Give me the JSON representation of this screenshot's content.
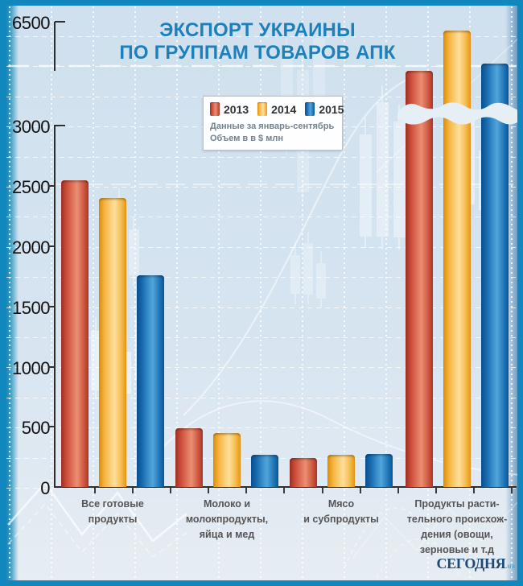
{
  "title": {
    "line1": "ЭКСПОРТ УКРАИНЫ",
    "line2": "ПО ГРУППАМ ТОВАРОВ АПК"
  },
  "legend": {
    "items": [
      {
        "label": "2013",
        "color": "#c0392b"
      },
      {
        "label": "2014",
        "color": "#f5b041"
      },
      {
        "label": "2015",
        "color": "#1f6fb2"
      }
    ],
    "note_line1": "Данные за январь-сентябрь",
    "note_line2": "Объем в в $ млн"
  },
  "chart_data": {
    "type": "bar",
    "title": "Экспорт Украины по группам товаров АПК",
    "subtitle": "Данные за январь-сентябрь, объем в $ млн",
    "unit": "$ млн",
    "categories": [
      "Все готовые продукты",
      "Молоко и молокпродукты, яйца и мед",
      "Мясо и субпродукты",
      "Продукты растительного происхождения (овощи, зерновые и т.д"
    ],
    "category_lines": [
      [
        "Все готовые",
        "продукты"
      ],
      [
        "Молоко и",
        "молокпродукты,",
        "яйца и мед"
      ],
      [
        "Мясо",
        "и субпродукты"
      ],
      [
        "Продукты расти-",
        "тельного происхож-",
        "дения (овощи,",
        "зерновые и т.д"
      ]
    ],
    "series": [
      {
        "name": "2013",
        "color": "#c0392b",
        "values": [
          2550,
          490,
          240,
          4850
        ]
      },
      {
        "name": "2014",
        "color": "#f5b041",
        "values": [
          2400,
          450,
          265,
          6200
        ]
      },
      {
        "name": "2015",
        "color": "#1f6fb2",
        "values": [
          1760,
          265,
          275,
          5100
        ]
      }
    ],
    "y_ticks": [
      0,
      500,
      1000,
      1500,
      2000,
      2500,
      3000,
      6500
    ],
    "ylim": [
      0,
      6500
    ],
    "axis_break": {
      "between": [
        3000,
        6500
      ]
    },
    "grid": true,
    "legend_position": "top-center"
  },
  "footer": {
    "logo_text": "СЕГОДНЯ",
    "logo_suffix": ".ua"
  }
}
